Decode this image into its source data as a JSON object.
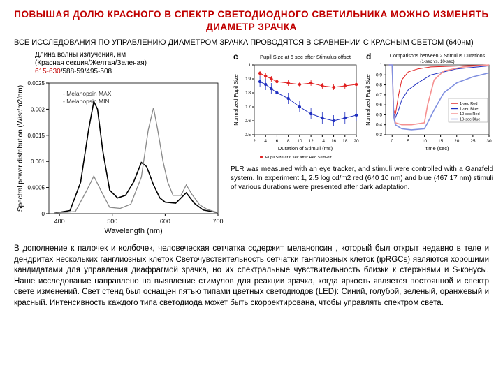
{
  "title": "ПОВЫШАЯ ДОЛЮ  КРАСНОГО  В СПЕКТР СВЕТОДИОДНОГО СВЕТИЛЬНИКА МОЖНО   ИЗМЕНЯТЬ    ДИАМЕТР ЗРАЧКА",
  "subtitle": "ВСЕ ИССЛЕДОВАНИЯ ПО УПРАВЛЕНИЮ ДИАМЕТРОМ ЗРАЧКА  ПРОВОДЯТСЯ В СРАВНЕНИИ С КРАСНЫМ СВЕТОМ (640нм)",
  "wavelength_label": {
    "line1": "Длина волны излучения, нм",
    "line2": "(Красная секция/Желтая/Зеленая)",
    "line3_red": "615-630",
    "line3_rest": "/588-59/495-508"
  },
  "chart_spectral": {
    "type": "line",
    "xlabel": "Wavelength (nm)",
    "ylabel": "Spectral power distribution (W/sr/m2/nm)",
    "xlim": [
      380,
      700
    ],
    "xticks": [
      400,
      500,
      600,
      700
    ],
    "ylim": [
      0,
      0.0025
    ],
    "yticks": [
      "0",
      "0.0005",
      "0.001",
      "0.0015",
      "0.002",
      "0.0025"
    ],
    "legend": [
      "- Melanopsin MAX",
      "- Melanopsin MIN"
    ],
    "background": "#ffffff",
    "axis_color": "#000000",
    "series": [
      {
        "label": "Melanopsin MAX",
        "color": "#000000",
        "width": 1.6,
        "points": [
          [
            390,
            1e-05
          ],
          [
            420,
            6e-05
          ],
          [
            440,
            0.0006
          ],
          [
            455,
            0.0016
          ],
          [
            465,
            0.00215
          ],
          [
            472,
            0.002
          ],
          [
            482,
            0.0012
          ],
          [
            495,
            0.00045
          ],
          [
            510,
            0.0003
          ],
          [
            525,
            0.00035
          ],
          [
            540,
            0.0006
          ],
          [
            555,
            0.00098
          ],
          [
            565,
            0.0009
          ],
          [
            578,
            0.00055
          ],
          [
            590,
            0.0003
          ],
          [
            600,
            0.00022
          ],
          [
            620,
            0.0002
          ],
          [
            640,
            0.0004
          ],
          [
            655,
            0.0002
          ],
          [
            672,
            7e-05
          ],
          [
            700,
            2e-05
          ]
        ]
      },
      {
        "label": "Melanopsin MIN",
        "color": "#888888",
        "width": 1.3,
        "points": [
          [
            390,
            1e-05
          ],
          [
            430,
            4e-05
          ],
          [
            452,
            0.00045
          ],
          [
            465,
            0.00072
          ],
          [
            478,
            0.00045
          ],
          [
            495,
            0.00012
          ],
          [
            515,
            0.0001
          ],
          [
            535,
            0.00018
          ],
          [
            555,
            0.0007
          ],
          [
            568,
            0.0016
          ],
          [
            578,
            0.00203
          ],
          [
            586,
            0.0016
          ],
          [
            596,
            0.001
          ],
          [
            605,
            0.0006
          ],
          [
            615,
            0.00035
          ],
          [
            630,
            0.00035
          ],
          [
            640,
            0.00055
          ],
          [
            650,
            0.00038
          ],
          [
            665,
            0.00017
          ],
          [
            680,
            8e-05
          ],
          [
            700,
            2e-05
          ]
        ]
      }
    ]
  },
  "chart_c": {
    "type": "scatter-line",
    "panel_label": "c",
    "title": "Pupil Size at 6 sec after Stimulus offset",
    "xlabel": "Duration of Stimuli (ms)",
    "ylabel": "Normalized Pupil Size",
    "xlim": [
      2,
      20
    ],
    "xticks": [
      2,
      4,
      6,
      8,
      10,
      12,
      14,
      16,
      18,
      20
    ],
    "ylim": [
      0.5,
      1.0
    ],
    "yticks": [
      "0.5",
      "0.6",
      "0.7",
      "0.8",
      "0.9",
      "1"
    ],
    "legend": [
      "Pupil Size at 6 sec after Red Stim-off",
      "Pupil Size at 6 sec after Blue Stim-off"
    ],
    "background": "#ffffff",
    "series": [
      {
        "color": "#e02020",
        "marker": "circle",
        "points": [
          [
            3,
            0.94
          ],
          [
            4,
            0.92
          ],
          [
            5,
            0.9
          ],
          [
            6,
            0.88
          ],
          [
            8,
            0.87
          ],
          [
            10,
            0.86
          ],
          [
            12,
            0.87
          ],
          [
            14,
            0.85
          ],
          [
            16,
            0.84
          ],
          [
            18,
            0.85
          ],
          [
            20,
            0.86
          ]
        ],
        "err": 0.02
      },
      {
        "color": "#2030c0",
        "marker": "circle",
        "points": [
          [
            3,
            0.88
          ],
          [
            4,
            0.86
          ],
          [
            5,
            0.83
          ],
          [
            6,
            0.8
          ],
          [
            8,
            0.76
          ],
          [
            10,
            0.7
          ],
          [
            12,
            0.65
          ],
          [
            14,
            0.62
          ],
          [
            16,
            0.6
          ],
          [
            18,
            0.62
          ],
          [
            20,
            0.64
          ]
        ],
        "err": 0.04
      }
    ]
  },
  "chart_d": {
    "type": "line",
    "panel_label": "d",
    "title": "Comparisons between 2 Stimulus Durations",
    "subtitle": "(1-sec vs. 10-sec)",
    "xlabel": "time (sec)",
    "ylabel": "Normalized Pupil Size",
    "xlim": [
      -2,
      30
    ],
    "xticks": [
      0,
      5,
      10,
      15,
      20,
      25,
      30
    ],
    "ylim": [
      0.3,
      1.0
    ],
    "yticks": [
      "0.3",
      "0.4",
      "0.5",
      "0.6",
      "0.7",
      "0.8",
      "0.9",
      "1"
    ],
    "legend": [
      "1-sec Red",
      "1-sec Blue",
      "10-sec Red",
      "10-sec Blue"
    ],
    "series": [
      {
        "color": "#e02020",
        "width": 1,
        "dash": "",
        "points": [
          [
            -1,
            1
          ],
          [
            0,
            1
          ],
          [
            0.5,
            0.55
          ],
          [
            1,
            0.5
          ],
          [
            2,
            0.7
          ],
          [
            3,
            0.85
          ],
          [
            5,
            0.93
          ],
          [
            8,
            0.96
          ],
          [
            12,
            0.98
          ],
          [
            30,
            1.0
          ]
        ]
      },
      {
        "color": "#2030c0",
        "width": 1,
        "dash": "",
        "points": [
          [
            -1,
            1
          ],
          [
            0,
            1
          ],
          [
            0.5,
            0.52
          ],
          [
            1,
            0.47
          ],
          [
            2,
            0.55
          ],
          [
            3,
            0.65
          ],
          [
            5,
            0.75
          ],
          [
            8,
            0.82
          ],
          [
            12,
            0.9
          ],
          [
            20,
            0.96
          ],
          [
            30,
            0.99
          ]
        ]
      },
      {
        "color": "#f59090",
        "width": 1.6,
        "dash": "",
        "points": [
          [
            -1,
            1
          ],
          [
            0,
            1
          ],
          [
            0.5,
            0.5
          ],
          [
            1,
            0.42
          ],
          [
            3,
            0.4
          ],
          [
            6,
            0.4
          ],
          [
            10,
            0.42
          ],
          [
            11,
            0.6
          ],
          [
            13,
            0.85
          ],
          [
            16,
            0.94
          ],
          [
            22,
            0.98
          ],
          [
            30,
            1.0
          ]
        ]
      },
      {
        "color": "#8090e0",
        "width": 1.6,
        "dash": "",
        "points": [
          [
            -1,
            1
          ],
          [
            0,
            1
          ],
          [
            0.5,
            0.48
          ],
          [
            1,
            0.4
          ],
          [
            3,
            0.36
          ],
          [
            6,
            0.35
          ],
          [
            10,
            0.36
          ],
          [
            11,
            0.42
          ],
          [
            13,
            0.55
          ],
          [
            16,
            0.72
          ],
          [
            20,
            0.82
          ],
          [
            25,
            0.88
          ],
          [
            30,
            0.92
          ]
        ]
      }
    ]
  },
  "caption_right": "PLR was measured with an eye tracker, and stimuli were controlled with a Ganzfeld system. In experiment 1, 2.5 log cd/m2 red (640  10 nm) and blue (467  17 nm) stimuli of various durations were presented after dark adaptation.",
  "body_text": "В дополнение к палочек и колбочек, человеческая сетчатка содержит меланопсин , который был открыт недавно в теле и дендритах нескольких ганглиозных клеток  Светочувствительность сетчатки ганглиозных клеток (ipRGCs) являются хорошими кандидатами для управления диафрагмой зрачка, но их спектральные  чувствительность близки к стержнями и S-конусы.  Наше исследование направлено на  выявление стимулов для реакции зрачка, когда яркость является постоянной и спектр свете изменений. Свет стенд был оснащен пятью типами цветных светодиодов (LED): Синий, голубой, зеленый, оранжевый и красный. Интенсивность каждого типа светодиода   может быть скорректирована, чтобы управлять спектром света."
}
